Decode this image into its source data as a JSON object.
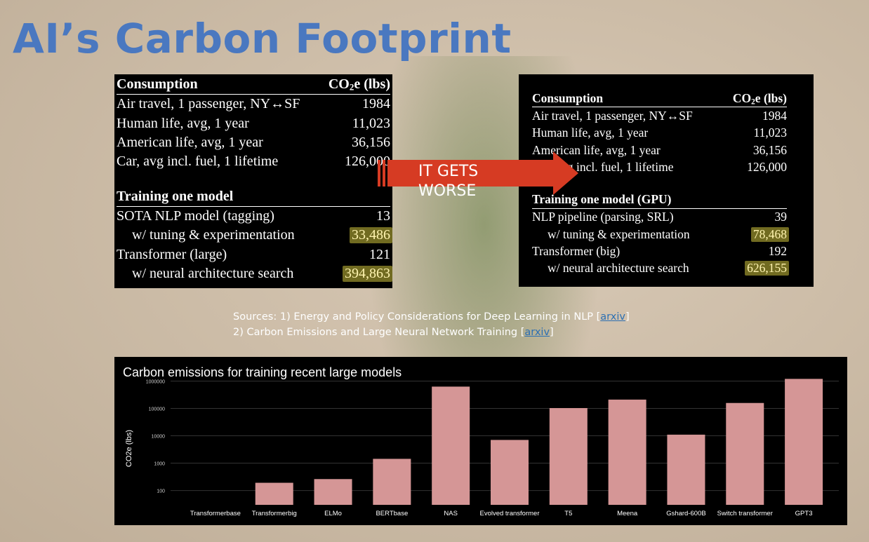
{
  "title": "AI’s Carbon Footprint",
  "table_left": {
    "header": {
      "label": "Consumption",
      "value_label_main": "CO",
      "value_label_sub": "2",
      "value_label_tail": "e (lbs)"
    },
    "consumption_rows": [
      {
        "label": "Air travel, 1 passenger, NY↔SF",
        "value": "1984"
      },
      {
        "label": "Human life, avg, 1 year",
        "value": "11,023"
      },
      {
        "label": "American life, avg, 1 year",
        "value": "36,156"
      },
      {
        "label": "Car, avg incl. fuel, 1 lifetime",
        "value": "126,000"
      }
    ],
    "training_header": "Training one model",
    "training_rows": [
      {
        "label": "SOTA NLP model (tagging)",
        "value": "13",
        "indent": false,
        "highlight": false
      },
      {
        "label": "w/ tuning & experimentation",
        "value": "33,486",
        "indent": true,
        "highlight": true
      },
      {
        "label": "Transformer (large)",
        "value": "121",
        "indent": false,
        "highlight": false
      },
      {
        "label": "w/ neural architecture search",
        "value": "394,863",
        "indent": true,
        "highlight": true
      }
    ]
  },
  "table_right": {
    "header": {
      "label": "Consumption",
      "value_label_main": "CO",
      "value_label_sub": "2",
      "value_label_tail": "e (lbs)"
    },
    "consumption_rows": [
      {
        "label": "Air travel, 1 passenger, NY↔SF",
        "value": "1984"
      },
      {
        "label": "Human life, avg, 1 year",
        "value": "11,023"
      },
      {
        "label": "American life, avg, 1 year",
        "value": "36,156"
      },
      {
        "label": "Car, avg incl. fuel, 1 lifetime",
        "value": "126,000"
      }
    ],
    "training_header": "Training one model (GPU)",
    "training_rows": [
      {
        "label": "NLP pipeline (parsing, SRL)",
        "value": "39",
        "indent": false,
        "highlight": false
      },
      {
        "label": "w/ tuning & experimentation",
        "value": "78,468",
        "indent": true,
        "highlight": true
      },
      {
        "label": "Transformer (big)",
        "value": "192",
        "indent": false,
        "highlight": false
      },
      {
        "label": "w/ neural architecture search",
        "value": "626,155",
        "indent": true,
        "highlight": true
      }
    ]
  },
  "arrow": {
    "text": "IT GETS WORSE",
    "color": "#d63b23"
  },
  "sources": {
    "line1_text": "Sources: 1) Energy and Policy Considerations for Deep Learning in NLP [",
    "line1_link": "arxiv",
    "line1_close": "]",
    "line2_text": "2) Carbon Emissions and Large Neural Network Training [",
    "line2_link": "arxiv",
    "line2_close": "]"
  },
  "chart_data": {
    "type": "bar",
    "title": "Carbon emissions for training recent large models",
    "xlabel": "",
    "ylabel": "CO2e (lbs)",
    "scale": "log",
    "ylim": [
      30,
      1300000
    ],
    "yticks": [
      100,
      1000,
      10000,
      100000,
      1000000
    ],
    "ytick_labels": [
      "100",
      "1000",
      "10000",
      "100000",
      "1000000"
    ],
    "grid": true,
    "bar_color": "#d59696",
    "categories": [
      "Transformerbase",
      "Transformerbig",
      "ELMo",
      "BERTbase",
      "NAS",
      "Evolved transformer",
      "T5",
      "Meena",
      "Gshard-600B",
      "Switch transformer",
      "GPT3"
    ],
    "values": [
      26,
      192,
      262,
      1438,
      626155,
      7058,
      103000,
      210000,
      11000,
      158000,
      1200000
    ]
  }
}
